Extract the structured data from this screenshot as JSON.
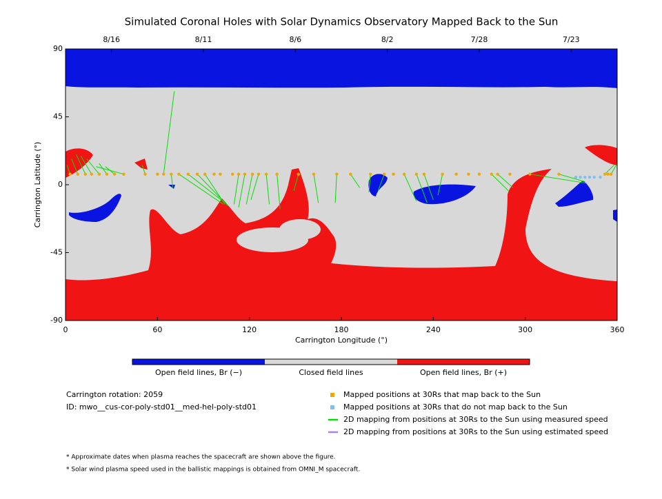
{
  "chart_data": {
    "type": "map",
    "title": "Simulated Coronal Holes with Solar Dynamics Observatory Mapped Back to the Sun",
    "xlabel": "Carrington Longitude (°)",
    "ylabel": "Carrington Latitude (°)",
    "xlim": [
      0,
      360
    ],
    "ylim": [
      -90,
      90
    ],
    "xticks": [
      0,
      60,
      120,
      180,
      240,
      300,
      360
    ],
    "yticks": [
      -90,
      -45,
      0,
      45,
      90
    ],
    "x2ticks": [
      {
        "value": 30,
        "label": "8/16"
      },
      {
        "value": 90,
        "label": "8/11"
      },
      {
        "value": 150,
        "label": "8/6"
      },
      {
        "value": 210,
        "label": "8/2"
      },
      {
        "value": 270,
        "label": "7/28"
      },
      {
        "value": 330,
        "label": "7/23"
      }
    ],
    "colorbar": [
      "Open field lines, Br (−)",
      "Closed field lines",
      "Open field lines, Br (+)"
    ],
    "colorbar_colors": [
      "#0a14e0",
      "#d8d8d8",
      "#f01414"
    ],
    "info": [
      "Carrington rotation: 2059",
      "ID: mwo__cus-cor-poly-std01__med-hel-poly-std01"
    ],
    "notes": [
      "* Approximate dates when plasma reaches the spacecraft are shown above the figure.",
      "* Solar wind plasma speed used in the ballistic mappings is obtained from OMNI_M spacecraft."
    ],
    "series": [
      {
        "name": "Mapped positions at 30Rs that map back to the Sun",
        "color": "#f0a800",
        "x": [
          3,
          8,
          13,
          17,
          22,
          27,
          32,
          38,
          52,
          60,
          64,
          69,
          74,
          80,
          86,
          91,
          97,
          101,
          109,
          113,
          117,
          122,
          126,
          131,
          138,
          152,
          162,
          177,
          186,
          199,
          208,
          214,
          221,
          229,
          234,
          246,
          255,
          263,
          270,
          278,
          282,
          290,
          303,
          322,
          352,
          354,
          356
        ],
        "y": [
          7,
          7,
          7,
          7,
          7,
          7,
          7,
          7,
          7,
          7,
          7,
          7,
          7,
          7,
          7,
          7,
          7,
          7,
          7,
          7,
          7,
          7,
          7,
          7,
          7,
          7,
          7,
          7,
          7,
          7,
          7,
          7,
          7,
          7,
          7,
          7,
          7,
          7,
          7,
          7,
          7,
          7,
          7,
          7,
          7,
          7,
          7
        ]
      },
      {
        "name": "Mapped positions at 30Rs that do not map back to the Sun",
        "color": "#80c0f0",
        "x": [
          333,
          336,
          339,
          342,
          345,
          349
        ],
        "y": [
          5,
          5,
          5,
          5,
          5,
          5
        ]
      },
      {
        "name": "2D mapping from positions at 30Rs to the Sun using measured speed",
        "color": "#00e000",
        "x0": [
          3,
          8,
          13,
          17,
          22,
          27,
          32,
          38,
          52,
          64,
          69,
          74,
          80,
          86,
          91,
          113,
          117,
          122,
          126,
          131,
          138,
          152,
          162,
          177,
          186,
          199,
          208,
          221,
          229,
          234,
          246,
          278,
          282,
          303,
          322,
          352,
          356
        ],
        "y0": [
          7,
          7,
          7,
          7,
          7,
          7,
          7,
          7,
          7,
          7,
          7,
          7,
          7,
          7,
          7,
          7,
          7,
          7,
          7,
          7,
          7,
          7,
          7,
          7,
          7,
          7,
          7,
          7,
          7,
          7,
          7,
          7,
          7,
          7,
          7,
          7,
          7
        ],
        "x1": [
          1,
          4,
          7,
          10,
          14,
          22,
          26,
          20,
          50,
          71,
          70,
          103,
          104,
          106,
          104,
          110,
          113,
          118,
          121,
          133,
          140,
          149,
          165,
          176,
          192,
          198,
          204,
          229,
          236,
          240,
          243,
          289,
          292,
          340,
          339,
          358,
          360
        ],
        "y1": [
          13,
          17,
          20,
          19,
          17,
          14,
          12,
          12,
          13,
          62,
          -2,
          -13,
          -12,
          -14,
          -13,
          -13,
          -15,
          -13,
          -10,
          -13,
          -16,
          -4,
          -12,
          -12,
          -2,
          -5,
          -4,
          -11,
          -12,
          -10,
          -7,
          -4,
          -2,
          1,
          2,
          13,
          14
        ]
      },
      {
        "name": "2D mapping from positions at 30Rs to the Sun using estimated speed",
        "color": "#b080e0",
        "x0": [],
        "y0": [],
        "x1": [],
        "y1": []
      }
    ]
  }
}
